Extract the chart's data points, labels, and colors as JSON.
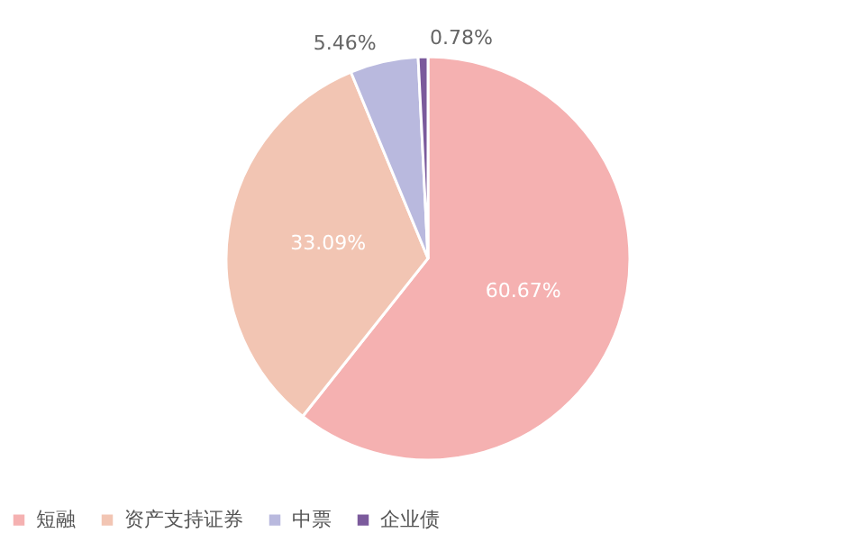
{
  "chart_data": {
    "type": "pie",
    "categories": [
      "短融",
      "资产支持证券",
      "中票",
      "企业债"
    ],
    "values": [
      60.67,
      33.09,
      5.46,
      0.78
    ],
    "colors": [
      "#f5b1b1",
      "#f2c5b3",
      "#b9b9de",
      "#7b5a9c"
    ],
    "value_labels": [
      "60.67%",
      "33.09%",
      "5.46%",
      "0.78%"
    ],
    "legend": "bottom"
  }
}
